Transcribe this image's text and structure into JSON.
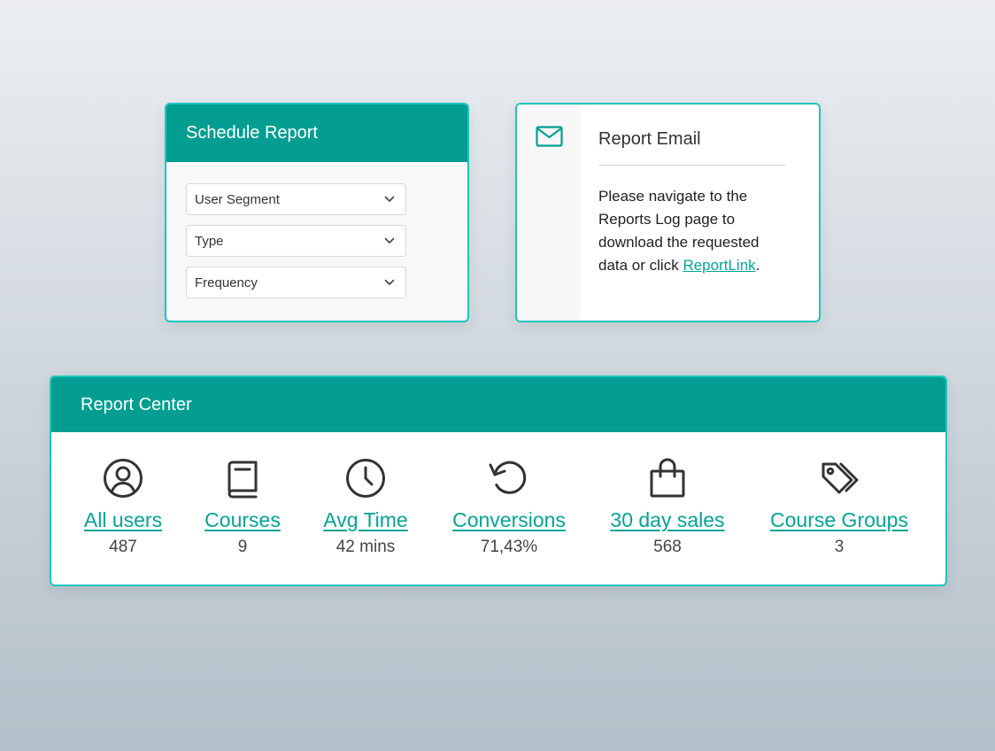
{
  "schedule_report": {
    "title": "Schedule Report",
    "selects": [
      {
        "value": "User Segment",
        "icon": "chevron-down-icon"
      },
      {
        "value": "Type",
        "icon": "chevron-down-icon"
      },
      {
        "value": "Frequency",
        "icon": "chevron-down-icon"
      }
    ]
  },
  "report_email": {
    "icon": "mail-icon",
    "title": "Report Email",
    "body_text": "Please navigate to the Reports Log page to download the requested data or click ",
    "link_text": "ReportLink",
    "body_end": "."
  },
  "report_center": {
    "title": "Report Center",
    "stats": [
      {
        "icon": "user-circle-icon",
        "label": "All users",
        "value": "487"
      },
      {
        "icon": "book-icon",
        "label": "Courses",
        "value": "9"
      },
      {
        "icon": "clock-icon",
        "label": "Avg Time",
        "value": "42 mins"
      },
      {
        "icon": "refresh-icon",
        "label": "Conversions",
        "value": "71,43%"
      },
      {
        "icon": "shopping-bag-icon",
        "label": "30 day sales",
        "value": "568"
      },
      {
        "icon": "tags-icon",
        "label": "Course Groups",
        "value": "3"
      }
    ]
  },
  "colors": {
    "accent": "#039e91",
    "border": "#1cc6bc",
    "link": "#03a394",
    "icon": "#333333"
  }
}
